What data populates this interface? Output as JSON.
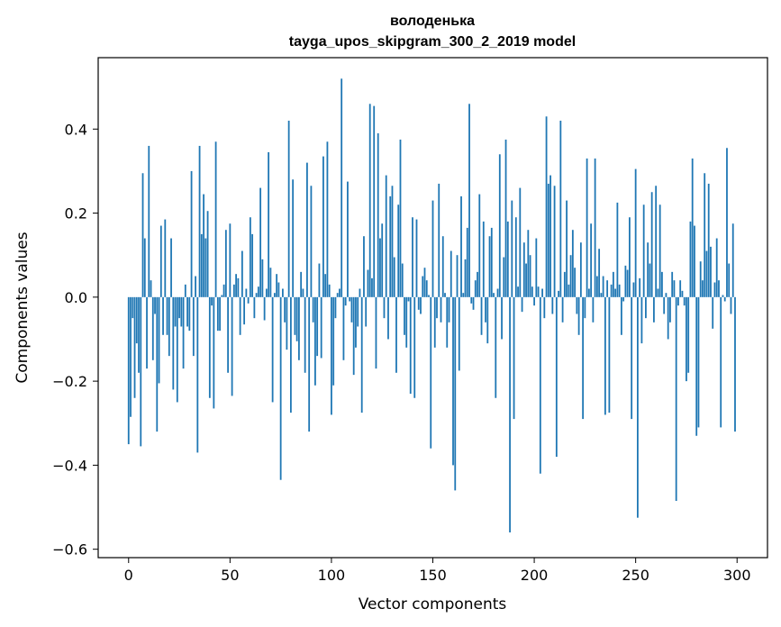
{
  "chart_data": {
    "type": "bar",
    "title": "володенька",
    "subtitle": "tayga_upos_skipgram_300_2_2019 model",
    "xlabel": "Vector components",
    "ylabel": "Components values",
    "xlim": [
      -15,
      315
    ],
    "ylim": [
      -0.62,
      0.57
    ],
    "xticks": [
      0,
      50,
      100,
      150,
      200,
      250,
      300
    ],
    "xtick_labels": [
      "0",
      "50",
      "100",
      "150",
      "200",
      "250",
      "300"
    ],
    "yticks": [
      0.4,
      0.2,
      0.0,
      -0.2,
      -0.4,
      -0.6
    ],
    "ytick_labels": [
      "0.4",
      "0.2",
      "0.0",
      "−0.2",
      "−0.4",
      "−0.6"
    ],
    "grid": false,
    "bar_color": "#1f77b4",
    "x": [
      0,
      1,
      2,
      3,
      4,
      5,
      6,
      7,
      8,
      9,
      10,
      11,
      12,
      13,
      14,
      15,
      16,
      17,
      18,
      19,
      20,
      21,
      22,
      23,
      24,
      25,
      26,
      27,
      28,
      29,
      30,
      31,
      32,
      33,
      34,
      35,
      36,
      37,
      38,
      39,
      40,
      41,
      42,
      43,
      44,
      45,
      46,
      47,
      48,
      49,
      50,
      51,
      52,
      53,
      54,
      55,
      56,
      57,
      58,
      59,
      60,
      61,
      62,
      63,
      64,
      65,
      66,
      67,
      68,
      69,
      70,
      71,
      72,
      73,
      74,
      75,
      76,
      77,
      78,
      79,
      80,
      81,
      82,
      83,
      84,
      85,
      86,
      87,
      88,
      89,
      90,
      91,
      92,
      93,
      94,
      95,
      96,
      97,
      98,
      99,
      100,
      101,
      102,
      103,
      104,
      105,
      106,
      107,
      108,
      109,
      110,
      111,
      112,
      113,
      114,
      115,
      116,
      117,
      118,
      119,
      120,
      121,
      122,
      123,
      124,
      125,
      126,
      127,
      128,
      129,
      130,
      131,
      132,
      133,
      134,
      135,
      136,
      137,
      138,
      139,
      140,
      141,
      142,
      143,
      144,
      145,
      146,
      147,
      148,
      149,
      150,
      151,
      152,
      153,
      154,
      155,
      156,
      157,
      158,
      159,
      160,
      161,
      162,
      163,
      164,
      165,
      166,
      167,
      168,
      169,
      170,
      171,
      172,
      173,
      174,
      175,
      176,
      177,
      178,
      179,
      180,
      181,
      182,
      183,
      184,
      185,
      186,
      187,
      188,
      189,
      190,
      191,
      192,
      193,
      194,
      195,
      196,
      197,
      198,
      199,
      200,
      201,
      202,
      203,
      204,
      205,
      206,
      207,
      208,
      209,
      210,
      211,
      212,
      213,
      214,
      215,
      216,
      217,
      218,
      219,
      220,
      221,
      222,
      223,
      224,
      225,
      226,
      227,
      228,
      229,
      230,
      231,
      232,
      233,
      234,
      235,
      236,
      237,
      238,
      239,
      240,
      241,
      242,
      243,
      244,
      245,
      246,
      247,
      248,
      249,
      250,
      251,
      252,
      253,
      254,
      255,
      256,
      257,
      258,
      259,
      260,
      261,
      262,
      263,
      264,
      265,
      266,
      267,
      268,
      269,
      270,
      271,
      272,
      273,
      274,
      275,
      276,
      277,
      278,
      279,
      280,
      281,
      282,
      283,
      284,
      285,
      286,
      287,
      288,
      289,
      290,
      291,
      292,
      293,
      294,
      295,
      296,
      297,
      298,
      299
    ],
    "values": [
      -0.35,
      -0.285,
      -0.05,
      -0.24,
      -0.11,
      -0.18,
      -0.355,
      0.295,
      0.14,
      -0.17,
      0.36,
      0.04,
      -0.15,
      -0.04,
      -0.32,
      -0.205,
      0.17,
      -0.09,
      0.185,
      -0.09,
      -0.14,
      0.14,
      -0.22,
      -0.07,
      -0.25,
      -0.05,
      -0.07,
      -0.17,
      0.03,
      -0.07,
      -0.08,
      0.3,
      -0.14,
      0.05,
      -0.37,
      0.36,
      0.15,
      0.245,
      0.14,
      0.205,
      -0.24,
      -0.02,
      -0.265,
      0.37,
      -0.08,
      -0.08,
      0.005,
      0.03,
      0.16,
      -0.18,
      0.175,
      -0.235,
      0.03,
      0.055,
      0.045,
      -0.09,
      0.11,
      -0.065,
      0.02,
      -0.015,
      0.19,
      0.15,
      -0.05,
      0.01,
      0.025,
      0.26,
      0.09,
      -0.055,
      0.02,
      0.345,
      0.07,
      -0.25,
      0.01,
      0.055,
      0.035,
      -0.435,
      0.02,
      -0.06,
      -0.125,
      0.42,
      -0.275,
      0.28,
      -0.09,
      -0.105,
      -0.15,
      0.06,
      0.02,
      -0.18,
      0.32,
      -0.32,
      0.265,
      -0.06,
      -0.21,
      -0.14,
      0.08,
      -0.145,
      0.335,
      0.055,
      0.37,
      0.03,
      -0.28,
      -0.21,
      -0.05,
      0.01,
      0.02,
      0.52,
      -0.15,
      -0.02,
      0.275,
      -0.01,
      -0.06,
      -0.185,
      -0.12,
      -0.07,
      0.02,
      -0.275,
      0.145,
      -0.07,
      0.065,
      0.46,
      0.045,
      0.455,
      -0.17,
      0.39,
      0.14,
      0.175,
      -0.05,
      0.29,
      -0.1,
      0.24,
      0.265,
      0.095,
      -0.18,
      0.22,
      0.375,
      0.08,
      -0.09,
      -0.12,
      -0.01,
      -0.23,
      0.19,
      -0.24,
      0.185,
      -0.03,
      -0.04,
      0.05,
      0.07,
      0.04,
      0.005,
      -0.36,
      0.23,
      -0.12,
      -0.05,
      0.27,
      -0.06,
      0.145,
      0.01,
      -0.12,
      -0.06,
      0.11,
      -0.4,
      -0.46,
      0.1,
      -0.175,
      0.24,
      0.01,
      0.09,
      0.165,
      0.46,
      -0.015,
      -0.03,
      0.04,
      0.06,
      0.245,
      -0.09,
      0.18,
      -0.06,
      -0.11,
      0.145,
      0.165,
      0.01,
      -0.24,
      0.02,
      0.34,
      -0.1,
      0.095,
      0.375,
      0.18,
      -0.56,
      0.23,
      -0.29,
      0.19,
      0.025,
      0.26,
      -0.035,
      0.13,
      0.08,
      0.16,
      0.1,
      0.025,
      -0.02,
      0.14,
      0.025,
      -0.42,
      0.02,
      -0.05,
      0.43,
      0.27,
      0.29,
      -0.04,
      0.265,
      -0.38,
      0.015,
      0.42,
      -0.06,
      0.06,
      0.23,
      0.03,
      0.1,
      0.16,
      0.07,
      -0.04,
      -0.09,
      0.13,
      -0.29,
      -0.05,
      0.33,
      0.02,
      0.175,
      -0.06,
      0.33,
      0.05,
      0.115,
      0.01,
      0.05,
      -0.28,
      0.04,
      -0.275,
      0.03,
      0.06,
      0.02,
      0.225,
      0.03,
      -0.09,
      -0.01,
      0.075,
      0.065,
      0.19,
      -0.29,
      0.035,
      0.305,
      -0.525,
      0.045,
      -0.11,
      0.22,
      -0.05,
      0.13,
      0.08,
      0.25,
      -0.06,
      0.265,
      0.02,
      0.22,
      0.06,
      -0.04,
      0.01,
      -0.1,
      -0.06,
      0.06,
      0.04,
      -0.485,
      -0.02,
      0.04,
      0.015,
      -0.02,
      -0.2,
      -0.18,
      0.18,
      0.33,
      0.17,
      -0.33,
      -0.31,
      0.085,
      0.04,
      0.295,
      0.11,
      0.27,
      0.12,
      -0.075,
      0.035,
      0.14,
      0.04,
      -0.31,
      0.005,
      -0.01,
      0.355,
      0.08,
      -0.04,
      0.175,
      -0.32
    ]
  }
}
